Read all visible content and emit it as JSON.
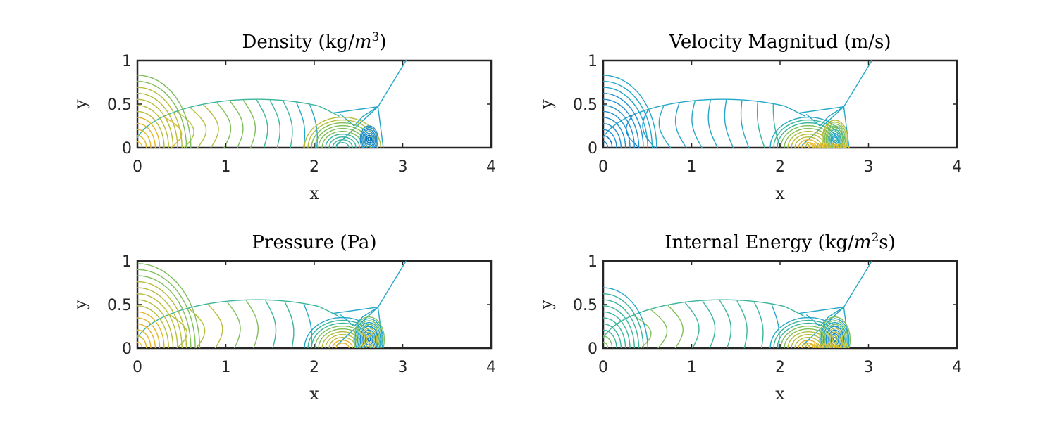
{
  "chart_data": [
    {
      "type": "contour",
      "title": "Density (kg/m³)",
      "title_parts": {
        "lead": "Density (kg/",
        "var": "m",
        "sup": "3",
        "tail": ")"
      },
      "xlabel": "x",
      "ylabel": "y",
      "xlim": [
        0,
        4
      ],
      "ylim": [
        0,
        1
      ],
      "xticks": [
        "0",
        "1",
        "2",
        "3",
        "4"
      ],
      "yticks": [
        "0",
        "0.5",
        "1"
      ],
      "high_region": "near origin",
      "low_region": "x≈2.6, y≈0.1"
    },
    {
      "type": "contour",
      "title": "Velocity Magnitud (m/s)",
      "title_parts": {
        "lead": "Velocity Magnitud (m/s)",
        "var": "",
        "sup": "",
        "tail": ""
      },
      "xlabel": "x",
      "ylabel": "y",
      "xlim": [
        0,
        4
      ],
      "ylim": [
        0,
        1
      ],
      "xticks": [
        "0",
        "1",
        "2",
        "3",
        "4"
      ],
      "yticks": [
        "0",
        "0.5",
        "1"
      ],
      "high_region": "x≈2.3–2.8, y≈0",
      "low_region": "near origin"
    },
    {
      "type": "contour",
      "title": "Pressure (Pa)",
      "title_parts": {
        "lead": "Pressure (Pa)",
        "var": "",
        "sup": "",
        "tail": ""
      },
      "xlabel": "x",
      "ylabel": "y",
      "xlim": [
        0,
        4
      ],
      "ylim": [
        0,
        1
      ],
      "xticks": [
        "0",
        "1",
        "2",
        "3",
        "4"
      ],
      "yticks": [
        "0",
        "0.5",
        "1"
      ],
      "high_region": "x≈2.3, y≈0",
      "low_region": "x≈2.6, y≈0.1"
    },
    {
      "type": "contour",
      "title": "Internal Energy (kg/m²s)",
      "title_parts": {
        "lead": "Internal Energy (kg/",
        "var": "m",
        "sup": "2",
        "tail": "s)"
      },
      "xlabel": "x",
      "ylabel": "y",
      "xlim": [
        0,
        4
      ],
      "ylim": [
        0,
        1
      ],
      "xticks": [
        "0",
        "1",
        "2",
        "3",
        "4"
      ],
      "yticks": [
        "0",
        "0.5",
        "1"
      ],
      "high_region": "x≈2.3–2.7, y≈0",
      "low_region": "x≈2.6, y≈0.1"
    }
  ],
  "colormap": [
    "#0072bd",
    "#1f8fd0",
    "#25a7c8",
    "#3ab59b",
    "#7fbf5a",
    "#b7bd3a",
    "#e3b52a",
    "#f9c11c"
  ]
}
